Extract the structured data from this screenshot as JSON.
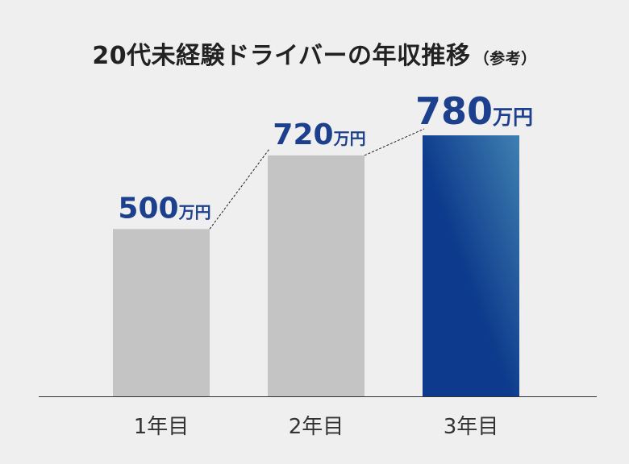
{
  "chart_data": {
    "type": "bar",
    "title": "20代未経験ドライバーの年収推移",
    "subtitle": "（参考）",
    "categories": [
      "1年目",
      "2年目",
      "3年目"
    ],
    "values": [
      500,
      720,
      780
    ],
    "value_labels": [
      "500",
      "720",
      "780"
    ],
    "unit": "万円",
    "ylim": [
      0,
      780
    ],
    "grid": false,
    "legend": "none",
    "highlight_index": 2,
    "colors": {
      "bar": "#c4c4c4",
      "highlight_top": "#3f80b0",
      "highlight_bottom": "#0d3a8c",
      "value_label": "#1c3f8e",
      "axis": "#333333",
      "category_label": "#333333",
      "connector": "#222222",
      "background": "#efefef"
    }
  }
}
